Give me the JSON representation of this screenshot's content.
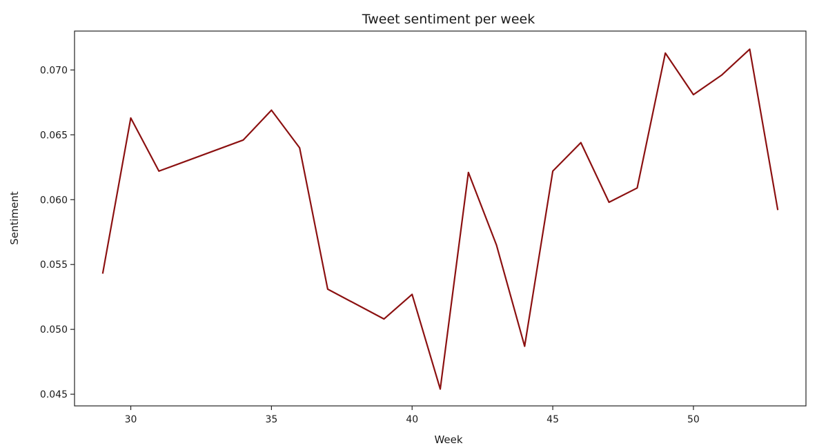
{
  "chart_data": {
    "type": "line",
    "title": "Tweet sentiment per week",
    "xlabel": "Week",
    "ylabel": "Sentiment",
    "xlim": [
      28.0,
      54.0
    ],
    "ylim": [
      0.0441,
      0.073
    ],
    "xticks": [
      30,
      35,
      40,
      45,
      50
    ],
    "yticks": [
      0.045,
      0.05,
      0.055,
      0.06,
      0.065,
      0.07
    ],
    "ytick_labels": [
      "0.045",
      "0.050",
      "0.055",
      "0.060",
      "0.065",
      "0.070"
    ],
    "grid": false,
    "legend": "none",
    "line_color": "#8b1010",
    "x": [
      29,
      30,
      31,
      34,
      35,
      36,
      37,
      39,
      40,
      41,
      42,
      43,
      44,
      45,
      46,
      47,
      48,
      49,
      50,
      51,
      52,
      53
    ],
    "y": [
      0.0543,
      0.0663,
      0.0622,
      0.0646,
      0.0669,
      0.064,
      0.0531,
      0.0508,
      0.0527,
      0.0454,
      0.0621,
      0.0565,
      0.0487,
      0.0622,
      0.0644,
      0.0598,
      0.0609,
      0.0713,
      0.0681,
      0.0696,
      0.0716,
      0.0592
    ]
  }
}
